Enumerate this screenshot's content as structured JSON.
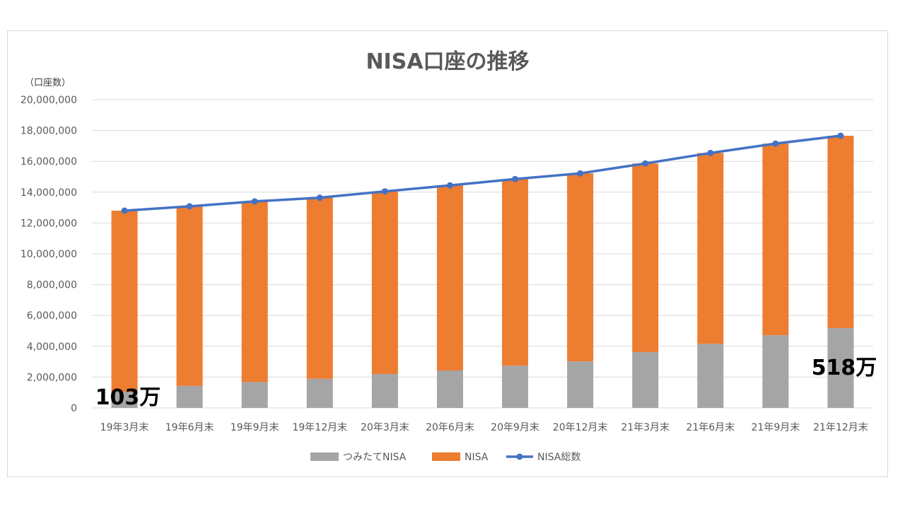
{
  "chart_data": {
    "type": "bar",
    "stacked": true,
    "title": "NISA口座の推移",
    "ylabel": "（口座数）",
    "xlabel": "",
    "ylim": [
      0,
      20000000
    ],
    "yticks": [
      0,
      2000000,
      4000000,
      6000000,
      8000000,
      10000000,
      12000000,
      14000000,
      16000000,
      18000000,
      20000000
    ],
    "ytick_labels": [
      "0",
      "2,000,000",
      "4,000,000",
      "6,000,000",
      "8,000,000",
      "10,000,000",
      "12,000,000",
      "14,000,000",
      "16,000,000",
      "18,000,000",
      "20,000,000"
    ],
    "grid": true,
    "legend_position": "bottom",
    "categories": [
      "19年3月末",
      "19年6月末",
      "19年9月末",
      "19年12月末",
      "20年3月末",
      "20年6月末",
      "20年9月末",
      "20年12月末",
      "21年3月末",
      "21年6月末",
      "21年9月末",
      "21年12月末"
    ],
    "series": [
      {
        "name": "つみたてNISA",
        "type": "bar",
        "color": "#a5a5a5",
        "values": [
          1030000,
          1430000,
          1680000,
          1890000,
          2200000,
          2430000,
          2740000,
          3020000,
          3620000,
          4160000,
          4720000,
          5180000
        ]
      },
      {
        "name": "NISA",
        "type": "bar",
        "color": "#ed7d31",
        "values": [
          11770000,
          11650000,
          11720000,
          11750000,
          11850000,
          12010000,
          12110000,
          12200000,
          12240000,
          12380000,
          12430000,
          12480000
        ]
      },
      {
        "name": "NISA総数",
        "type": "line",
        "color": "#4472c4",
        "values": [
          12800000,
          13080000,
          13400000,
          13640000,
          14050000,
          14440000,
          14850000,
          15220000,
          15860000,
          16540000,
          17150000,
          17660000
        ]
      }
    ],
    "annotations": [
      {
        "text": "103万",
        "category": "19年3月末"
      },
      {
        "text": "518万",
        "category": "21年12月末"
      }
    ]
  }
}
